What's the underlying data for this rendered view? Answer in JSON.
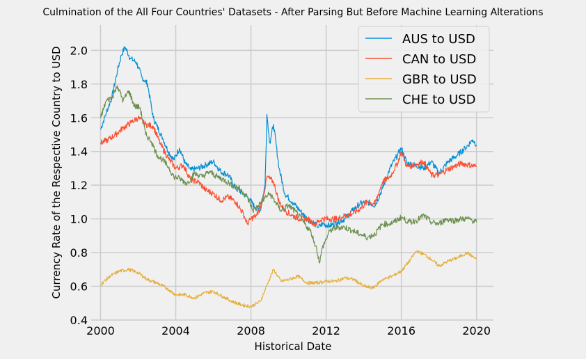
{
  "chart_data": {
    "type": "line",
    "title": "Culmination of the All Four Countries' Datasets - After Parsing But Before Machine Learning Alterations",
    "xlabel": "Historical Date",
    "ylabel": "Currency Rate of the Respective Country to USD",
    "xlim": [
      1999.5,
      2020.9
    ],
    "ylim": [
      0.4,
      2.15
    ],
    "x_ticks": [
      "2000",
      "2004",
      "2008",
      "2012",
      "2016",
      "2020"
    ],
    "x_tick_values": [
      2000,
      2004,
      2008,
      2012,
      2016,
      2020
    ],
    "y_ticks": [
      "0.4",
      "0.6",
      "0.8",
      "1.0",
      "1.2",
      "1.4",
      "1.6",
      "1.8",
      "2.0"
    ],
    "y_tick_values": [
      0.4,
      0.6,
      0.8,
      1.0,
      1.2,
      1.4,
      1.6,
      1.8,
      2.0
    ],
    "grid": true,
    "legend_position": "top-right",
    "series": [
      {
        "name": "AUS to USD",
        "color": "#008fd5",
        "x": [
          2000.0,
          2000.3,
          2000.6,
          2000.9,
          2001.1,
          2001.3,
          2001.6,
          2001.9,
          2002.2,
          2002.5,
          2002.8,
          2003.0,
          2003.3,
          2003.6,
          2003.9,
          2004.2,
          2004.5,
          2004.8,
          2005.2,
          2005.6,
          2006.0,
          2006.4,
          2006.8,
          2007.2,
          2007.6,
          2007.9,
          2008.2,
          2008.5,
          2008.75,
          2008.85,
          2009.0,
          2009.2,
          2009.5,
          2009.8,
          2010.2,
          2010.6,
          2011.0,
          2011.3,
          2011.6,
          2011.8,
          2012.2,
          2012.6,
          2013.0,
          2013.4,
          2013.8,
          2014.2,
          2014.6,
          2015.0,
          2015.4,
          2015.8,
          2016.0,
          2016.3,
          2016.7,
          2017.2,
          2017.6,
          2018.0,
          2018.5,
          2019.0,
          2019.4,
          2019.8,
          2020.0
        ],
        "y": [
          1.53,
          1.63,
          1.72,
          1.88,
          1.97,
          2.02,
          1.95,
          1.93,
          1.84,
          1.8,
          1.6,
          1.55,
          1.48,
          1.4,
          1.35,
          1.42,
          1.33,
          1.29,
          1.3,
          1.32,
          1.34,
          1.28,
          1.26,
          1.18,
          1.15,
          1.12,
          1.07,
          1.05,
          1.2,
          1.62,
          1.45,
          1.56,
          1.3,
          1.15,
          1.1,
          1.05,
          1.0,
          0.98,
          0.95,
          0.97,
          0.96,
          0.98,
          1.0,
          1.05,
          1.09,
          1.1,
          1.08,
          1.18,
          1.3,
          1.38,
          1.42,
          1.33,
          1.32,
          1.3,
          1.34,
          1.27,
          1.34,
          1.38,
          1.42,
          1.47,
          1.44
        ]
      },
      {
        "name": "CAN to USD",
        "color": "#fc4f30",
        "x": [
          2000.0,
          2000.4,
          2000.8,
          2001.2,
          2001.6,
          2002.0,
          2002.4,
          2002.8,
          2003.2,
          2003.6,
          2004.0,
          2004.4,
          2004.8,
          2005.2,
          2005.6,
          2006.0,
          2006.4,
          2006.8,
          2007.2,
          2007.6,
          2007.8,
          2008.0,
          2008.3,
          2008.6,
          2008.85,
          2009.2,
          2009.5,
          2009.8,
          2010.2,
          2010.6,
          2011.0,
          2011.4,
          2011.8,
          2012.2,
          2012.6,
          2013.0,
          2013.4,
          2013.8,
          2014.2,
          2014.6,
          2015.0,
          2015.4,
          2015.8,
          2016.0,
          2016.3,
          2016.7,
          2017.2,
          2017.6,
          2018.0,
          2018.4,
          2018.8,
          2019.2,
          2019.6,
          2020.0
        ],
        "y": [
          1.45,
          1.47,
          1.5,
          1.54,
          1.57,
          1.6,
          1.56,
          1.55,
          1.44,
          1.36,
          1.3,
          1.32,
          1.23,
          1.22,
          1.17,
          1.15,
          1.11,
          1.13,
          1.1,
          1.03,
          0.97,
          1.0,
          1.02,
          1.1,
          1.25,
          1.22,
          1.1,
          1.05,
          1.02,
          1.0,
          1.0,
          0.97,
          1.0,
          1.0,
          1.0,
          1.02,
          1.03,
          1.06,
          1.1,
          1.09,
          1.22,
          1.25,
          1.33,
          1.4,
          1.31,
          1.32,
          1.34,
          1.26,
          1.26,
          1.29,
          1.31,
          1.33,
          1.32,
          1.31
        ]
      },
      {
        "name": "GBR to USD",
        "color": "#e5ae38",
        "x": [
          2000.0,
          2000.5,
          2001.0,
          2001.5,
          2002.0,
          2002.5,
          2003.0,
          2003.5,
          2004.0,
          2004.5,
          2005.0,
          2005.5,
          2006.0,
          2006.5,
          2007.0,
          2007.5,
          2008.0,
          2008.5,
          2008.9,
          2009.2,
          2009.6,
          2010.0,
          2010.5,
          2011.0,
          2011.5,
          2012.0,
          2012.5,
          2013.0,
          2013.5,
          2014.0,
          2014.5,
          2015.0,
          2015.5,
          2016.0,
          2016.5,
          2016.8,
          2017.2,
          2017.6,
          2018.0,
          2018.5,
          2019.0,
          2019.5,
          2020.0
        ],
        "y": [
          0.61,
          0.66,
          0.69,
          0.7,
          0.68,
          0.64,
          0.62,
          0.59,
          0.55,
          0.55,
          0.53,
          0.56,
          0.57,
          0.54,
          0.51,
          0.49,
          0.48,
          0.51,
          0.62,
          0.7,
          0.63,
          0.64,
          0.66,
          0.62,
          0.62,
          0.63,
          0.63,
          0.65,
          0.64,
          0.6,
          0.59,
          0.64,
          0.66,
          0.69,
          0.76,
          0.81,
          0.79,
          0.76,
          0.72,
          0.75,
          0.77,
          0.8,
          0.76
        ]
      },
      {
        "name": "CHE to USD",
        "color": "#6d904f",
        "x": [
          2000.0,
          2000.3,
          2000.6,
          2000.9,
          2001.2,
          2001.5,
          2001.8,
          2002.1,
          2002.4,
          2002.7,
          2003.0,
          2003.3,
          2003.6,
          2003.9,
          2004.2,
          2004.6,
          2005.0,
          2005.4,
          2005.8,
          2006.2,
          2006.6,
          2007.0,
          2007.4,
          2007.8,
          2008.1,
          2008.4,
          2008.7,
          2009.0,
          2009.3,
          2009.6,
          2010.0,
          2010.4,
          2010.8,
          2011.2,
          2011.5,
          2011.65,
          2011.8,
          2012.2,
          2012.6,
          2013.0,
          2013.4,
          2013.8,
          2014.2,
          2014.6,
          2015.0,
          2015.3,
          2015.6,
          2016.0,
          2016.4,
          2016.8,
          2017.2,
          2017.6,
          2018.0,
          2018.4,
          2018.8,
          2019.2,
          2019.6,
          2020.0
        ],
        "y": [
          1.6,
          1.7,
          1.72,
          1.79,
          1.7,
          1.76,
          1.67,
          1.66,
          1.5,
          1.46,
          1.38,
          1.35,
          1.31,
          1.25,
          1.24,
          1.21,
          1.27,
          1.25,
          1.28,
          1.25,
          1.23,
          1.2,
          1.18,
          1.13,
          1.05,
          1.08,
          1.12,
          1.15,
          1.1,
          1.05,
          1.08,
          1.04,
          0.98,
          0.92,
          0.82,
          0.74,
          0.83,
          0.93,
          0.95,
          0.95,
          0.93,
          0.91,
          0.89,
          0.91,
          0.97,
          0.97,
          0.98,
          1.01,
          0.98,
          0.99,
          1.02,
          0.98,
          0.97,
          1.0,
          0.99,
          1.0,
          1.0,
          0.98
        ]
      }
    ]
  }
}
